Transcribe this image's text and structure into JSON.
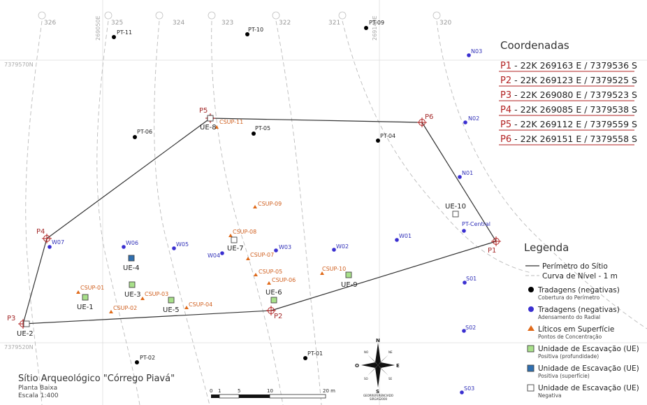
{
  "coordinates": {
    "title": "Coordenadas",
    "rows": [
      {
        "id": "P1",
        "text": "22K 269163 E / 7379536 S"
      },
      {
        "id": "P2",
        "text": "22K 269123 E / 7379525 S"
      },
      {
        "id": "P3",
        "text": "22K 269080 E / 7379523 S"
      },
      {
        "id": "P4",
        "text": "22K 269085 E / 7379538 S"
      },
      {
        "id": "P5",
        "text": "22K 269112 E / 7379559 S"
      },
      {
        "id": "P6",
        "text": "22K 269151 E / 7379558 S"
      }
    ]
  },
  "grid": {
    "northing_top": "7379570N",
    "northing_bottom": "7379520N",
    "easting_left": "269050E",
    "easting_right": "269140E"
  },
  "contours": [
    "326",
    "325",
    "324",
    "323",
    "322",
    "321",
    "320"
  ],
  "vertices": [
    "P1",
    "P2",
    "P3",
    "P4",
    "P5",
    "P6"
  ],
  "pt_points": [
    "PT-11",
    "PT-10",
    "PT-09",
    "PT-06",
    "PT-05",
    "PT-04",
    "PT-02",
    "PT-01"
  ],
  "radial_points": [
    "N03",
    "N02",
    "N01",
    "PT-Central",
    "W01",
    "W02",
    "W03",
    "W04",
    "W05",
    "W06",
    "W07",
    "S01",
    "S02",
    "S03"
  ],
  "surface_finds": [
    "CSUP-11",
    "CSUP-09",
    "CSUP-08",
    "CSUP-07",
    "CSUP-05",
    "CSUP-06",
    "CSUP-10",
    "CSUP-01",
    "CSUP-02",
    "CSUP-03",
    "CSUP-04"
  ],
  "excavation_units": [
    "UE-1",
    "UE-2",
    "UE-3",
    "UE-4",
    "UE-5",
    "UE-6",
    "UE-7",
    "UE-8",
    "UE-9",
    "UE-10"
  ],
  "legend": {
    "title": "Legenda",
    "perimeter": "Perímetro do Sítio",
    "contour": "Curva de Nível - 1 m",
    "items": [
      {
        "main": "Tradagens (negativas)",
        "sub": "Cobertura do Perímetro"
      },
      {
        "main": "Tradagens (negativas)",
        "sub": "Adensamento do Radial"
      },
      {
        "main": "Líticos em Superfície",
        "sub": "Pontos de Concentração"
      },
      {
        "main": "Unidade de Escavação (UE)",
        "sub": "Positiva (profundidade)"
      },
      {
        "main": "Unidade de Escavação (UE)",
        "sub": "Positiva (superfície)"
      },
      {
        "main": "Unidade de Escavação (UE)",
        "sub": "Negativa"
      }
    ]
  },
  "site": {
    "title": "Sítio Arqueológico \"Córrego Piavá\"",
    "subtitle": "Planta Baixa",
    "scale": "Escala 1:400"
  },
  "scale_bar": {
    "labels": [
      "0",
      "1",
      "5",
      "10",
      "20 m"
    ]
  },
  "compass": {
    "n": "N",
    "s": "S",
    "e": "E",
    "o": "O",
    "ne": "NE",
    "no": "NO",
    "se": "SE",
    "so": "SO",
    "note1": "GEORREFERENCIADO",
    "note2": "SIRGAS2000"
  },
  "colors": {
    "perimeter": "#333333",
    "vertex": "#b22222",
    "pt_point": "#000000",
    "radial_point": "#3a2fd0",
    "surface_find": "#e06a1a",
    "ue_positive_depth": "#a8e08a",
    "ue_positive_surface": "#2f6fb0",
    "ue_negative": "#ffffff"
  }
}
